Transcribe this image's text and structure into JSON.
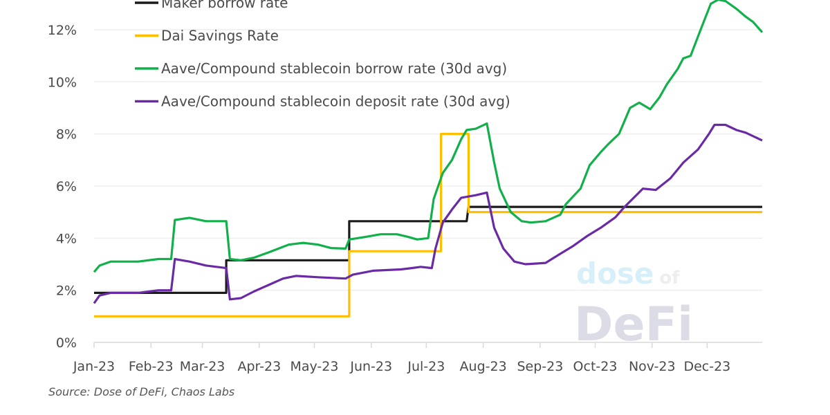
{
  "chart_data": {
    "type": "line",
    "title": "",
    "xlabel": "",
    "ylabel": "",
    "ylim": [
      0,
      13.15
    ],
    "y_ticks": [
      "0%",
      "2%",
      "4%",
      "6%",
      "8%",
      "10%",
      "12%"
    ],
    "y_tick_values": [
      0,
      2,
      4,
      6,
      8,
      10,
      12
    ],
    "x_ticks": [
      "Jan-23",
      "Feb-23",
      "Mar-23",
      "Apr-23",
      "May-23",
      "Jun-23",
      "Jul-23",
      "Aug-23",
      "Sep-23",
      "Oct-23",
      "Nov-23",
      "Dec-23"
    ],
    "x_tick_dates": [
      "2023-01-01",
      "2023-02-01",
      "2023-03-01",
      "2023-04-01",
      "2023-05-01",
      "2023-06-01",
      "2023-07-01",
      "2023-08-01",
      "2023-09-01",
      "2023-10-01",
      "2023-11-01",
      "2023-12-01"
    ],
    "xlim": [
      "2023-01-01",
      "2023-12-31"
    ],
    "grid": "horizontal",
    "legend_position": "top-left",
    "series": [
      {
        "name": "Maker borrow rate",
        "color": "#1a1a1a",
        "points": [
          [
            "2023-01-01",
            1.9
          ],
          [
            "2023-03-14",
            1.9
          ],
          [
            "2023-03-14",
            3.15
          ],
          [
            "2023-05-20",
            3.15
          ],
          [
            "2023-05-20",
            4.65
          ],
          [
            "2023-07-23",
            4.65
          ],
          [
            "2023-07-24",
            5.2
          ],
          [
            "2023-12-31",
            5.2
          ]
        ]
      },
      {
        "name": "Dai Savings Rate",
        "color": "#ffbf00",
        "points": [
          [
            "2023-01-01",
            1.0
          ],
          [
            "2023-05-20",
            1.0
          ],
          [
            "2023-05-20",
            3.5
          ],
          [
            "2023-07-09",
            3.5
          ],
          [
            "2023-07-09",
            8.0
          ],
          [
            "2023-07-24",
            8.0
          ],
          [
            "2023-07-24",
            5.0
          ],
          [
            "2023-12-31",
            5.0
          ]
        ]
      },
      {
        "name": "Aave/Compound stablecoin borrow rate (30d avg)",
        "color": "#12b04a",
        "points": [
          [
            "2023-01-01",
            2.7
          ],
          [
            "2023-01-04",
            2.95
          ],
          [
            "2023-01-10",
            3.1
          ],
          [
            "2023-01-17",
            3.1
          ],
          [
            "2023-01-25",
            3.1
          ],
          [
            "2023-02-05",
            3.2
          ],
          [
            "2023-02-12",
            3.2
          ],
          [
            "2023-02-14",
            4.7
          ],
          [
            "2023-02-22",
            4.78
          ],
          [
            "2023-03-03",
            4.65
          ],
          [
            "2023-03-14",
            4.65
          ],
          [
            "2023-03-16",
            3.2
          ],
          [
            "2023-03-22",
            3.15
          ],
          [
            "2023-03-29",
            3.25
          ],
          [
            "2023-04-06",
            3.45
          ],
          [
            "2023-04-17",
            3.75
          ],
          [
            "2023-04-25",
            3.82
          ],
          [
            "2023-05-03",
            3.75
          ],
          [
            "2023-05-10",
            3.62
          ],
          [
            "2023-05-18",
            3.6
          ],
          [
            "2023-05-20",
            3.95
          ],
          [
            "2023-05-29",
            4.05
          ],
          [
            "2023-06-06",
            4.15
          ],
          [
            "2023-06-15",
            4.15
          ],
          [
            "2023-06-21",
            4.05
          ],
          [
            "2023-06-26",
            3.95
          ],
          [
            "2023-07-02",
            4.0
          ],
          [
            "2023-07-05",
            5.5
          ],
          [
            "2023-07-10",
            6.5
          ],
          [
            "2023-07-15",
            7.0
          ],
          [
            "2023-07-20",
            7.8
          ],
          [
            "2023-07-23",
            8.15
          ],
          [
            "2023-07-28",
            8.2
          ],
          [
            "2023-08-03",
            8.4
          ],
          [
            "2023-08-07",
            6.9
          ],
          [
            "2023-08-10",
            5.9
          ],
          [
            "2023-08-16",
            5.0
          ],
          [
            "2023-08-22",
            4.65
          ],
          [
            "2023-08-27",
            4.6
          ],
          [
            "2023-09-04",
            4.65
          ],
          [
            "2023-09-12",
            4.9
          ],
          [
            "2023-09-15",
            5.3
          ],
          [
            "2023-09-23",
            5.9
          ],
          [
            "2023-09-28",
            6.8
          ],
          [
            "2023-10-04",
            7.3
          ],
          [
            "2023-10-08",
            7.6
          ],
          [
            "2023-10-14",
            8.0
          ],
          [
            "2023-10-17",
            8.5
          ],
          [
            "2023-10-20",
            9.0
          ],
          [
            "2023-10-25",
            9.2
          ],
          [
            "2023-10-31",
            8.95
          ],
          [
            "2023-11-05",
            9.4
          ],
          [
            "2023-11-09",
            9.9
          ],
          [
            "2023-11-15",
            10.5
          ],
          [
            "2023-11-18",
            10.9
          ],
          [
            "2023-11-22",
            11.0
          ],
          [
            "2023-11-28",
            12.1
          ],
          [
            "2023-12-03",
            13.0
          ],
          [
            "2023-12-07",
            13.15
          ],
          [
            "2023-12-11",
            13.1
          ],
          [
            "2023-12-17",
            12.8
          ],
          [
            "2023-12-22",
            12.5
          ],
          [
            "2023-12-26",
            12.3
          ],
          [
            "2023-12-31",
            11.9
          ]
        ]
      },
      {
        "name": "Aave/Compound stablecoin deposit rate (30d avg)",
        "color": "#6a2aa6",
        "points": [
          [
            "2023-01-01",
            1.5
          ],
          [
            "2023-01-04",
            1.8
          ],
          [
            "2023-01-10",
            1.9
          ],
          [
            "2023-01-17",
            1.9
          ],
          [
            "2023-01-25",
            1.9
          ],
          [
            "2023-02-05",
            2.0
          ],
          [
            "2023-02-12",
            2.0
          ],
          [
            "2023-02-14",
            3.2
          ],
          [
            "2023-02-22",
            3.1
          ],
          [
            "2023-03-03",
            2.95
          ],
          [
            "2023-03-14",
            2.85
          ],
          [
            "2023-03-16",
            1.65
          ],
          [
            "2023-03-22",
            1.7
          ],
          [
            "2023-03-29",
            1.95
          ],
          [
            "2023-04-06",
            2.2
          ],
          [
            "2023-04-14",
            2.45
          ],
          [
            "2023-04-21",
            2.55
          ],
          [
            "2023-05-03",
            2.5
          ],
          [
            "2023-05-18",
            2.45
          ],
          [
            "2023-05-22",
            2.6
          ],
          [
            "2023-06-02",
            2.75
          ],
          [
            "2023-06-17",
            2.8
          ],
          [
            "2023-06-23",
            2.85
          ],
          [
            "2023-06-28",
            2.9
          ],
          [
            "2023-07-04",
            2.85
          ],
          [
            "2023-07-06",
            3.6
          ],
          [
            "2023-07-10",
            4.6
          ],
          [
            "2023-07-15",
            5.1
          ],
          [
            "2023-07-20",
            5.55
          ],
          [
            "2023-07-28",
            5.65
          ],
          [
            "2023-08-03",
            5.75
          ],
          [
            "2023-08-07",
            4.4
          ],
          [
            "2023-08-12",
            3.6
          ],
          [
            "2023-08-18",
            3.1
          ],
          [
            "2023-08-24",
            3.0
          ],
          [
            "2023-09-04",
            3.05
          ],
          [
            "2023-09-12",
            3.4
          ],
          [
            "2023-09-19",
            3.7
          ],
          [
            "2023-09-27",
            4.1
          ],
          [
            "2023-10-04",
            4.4
          ],
          [
            "2023-10-12",
            4.8
          ],
          [
            "2023-10-17",
            5.2
          ],
          [
            "2023-10-27",
            5.9
          ],
          [
            "2023-11-03",
            5.85
          ],
          [
            "2023-11-11",
            6.3
          ],
          [
            "2023-11-18",
            6.9
          ],
          [
            "2023-11-26",
            7.4
          ],
          [
            "2023-12-02",
            8.0
          ],
          [
            "2023-12-05",
            8.35
          ],
          [
            "2023-12-11",
            8.35
          ],
          [
            "2023-12-17",
            8.15
          ],
          [
            "2023-12-22",
            8.05
          ],
          [
            "2023-12-28",
            7.85
          ],
          [
            "2023-12-31",
            7.75
          ]
        ]
      }
    ]
  },
  "source": "Source: Dose of DeFi, Chaos Labs",
  "watermark": {
    "line1": "dose",
    "line1b": "of",
    "line2": "DeFi"
  }
}
